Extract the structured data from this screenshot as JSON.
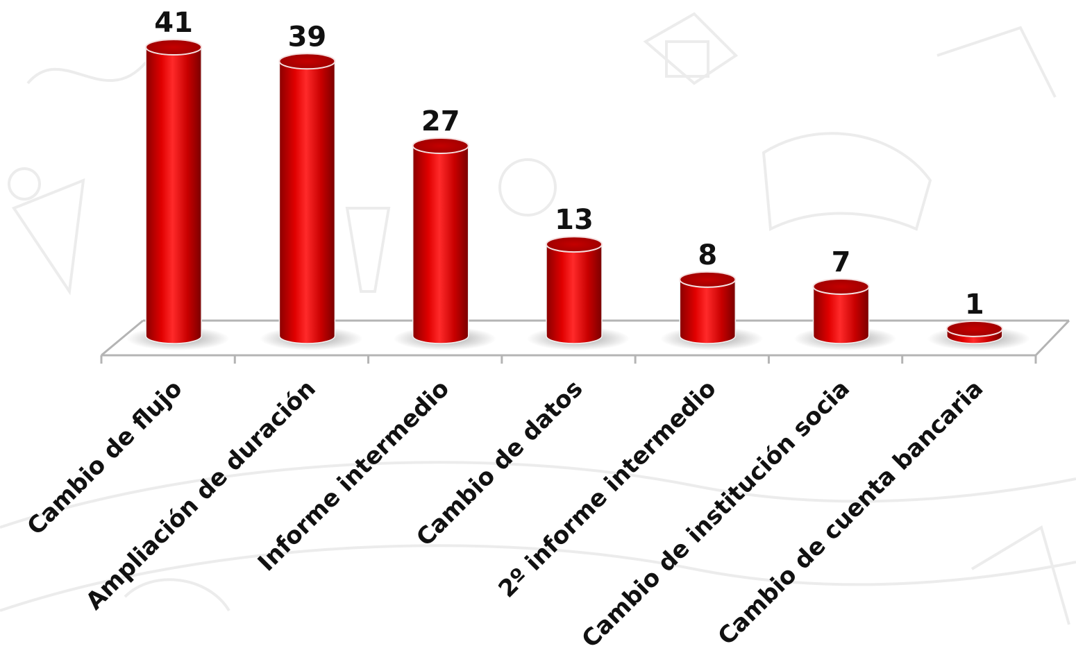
{
  "chart_data": {
    "type": "bar",
    "style": "3d-cylinder",
    "categories": [
      "Cambio de flujo",
      "Ampliación de duración",
      "Informe intermedio",
      "Cambio de datos",
      "2º informe intermedio",
      "Cambio de institución socia",
      "Cambio de cuenta bancaria"
    ],
    "values": [
      41,
      39,
      27,
      13,
      8,
      7,
      1
    ],
    "ylim": [
      0,
      41
    ],
    "grid": false,
    "legend": "none",
    "colors": {
      "bar": "#d00000",
      "bar_dark": "#8a0000",
      "bar_light": "#ff2a2a",
      "top": "#b80000",
      "axis": "#b4b4b4",
      "text": "#111111",
      "background_sketch": "#ececec"
    }
  }
}
